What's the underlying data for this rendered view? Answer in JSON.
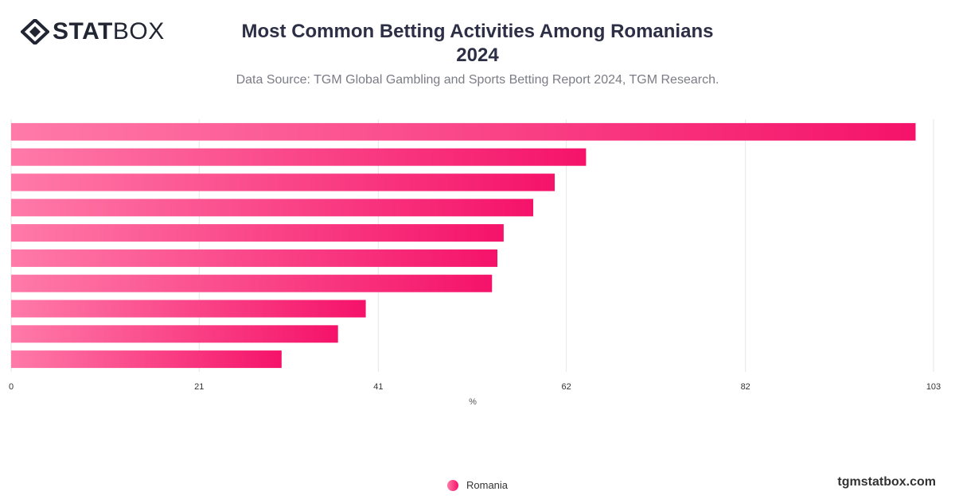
{
  "brand": {
    "logo_bold": "STAT",
    "logo_light": "BOX",
    "footer": "tgmstatbox.com"
  },
  "title_line1": "Most Common Betting Activities Among Romanians",
  "title_line2": "2024",
  "subtitle": "Data Source: TGM Global Gambling and Sports Betting Report 2024, TGM Research.",
  "colors": {
    "bar_start": "#ff7aa8",
    "bar_end": "#f5136a",
    "grid": "#e6e6e6",
    "title": "#2c2f45"
  },
  "chart_data": {
    "type": "bar",
    "orientation": "horizontal",
    "categories": [
      "",
      "",
      "",
      "",
      "",
      "",
      "",
      "",
      "",
      ""
    ],
    "series": [
      {
        "name": "Romania",
        "values": [
          101,
          64.2,
          60.7,
          58.3,
          55,
          54.3,
          53.7,
          39.6,
          36.5,
          30.2
        ]
      }
    ],
    "xlabel": "%",
    "ylabel": "",
    "xlim": [
      0,
      103
    ],
    "xticks": [
      0,
      21,
      41,
      62,
      82,
      103
    ],
    "grid": true,
    "legend_position": "bottom-center"
  }
}
